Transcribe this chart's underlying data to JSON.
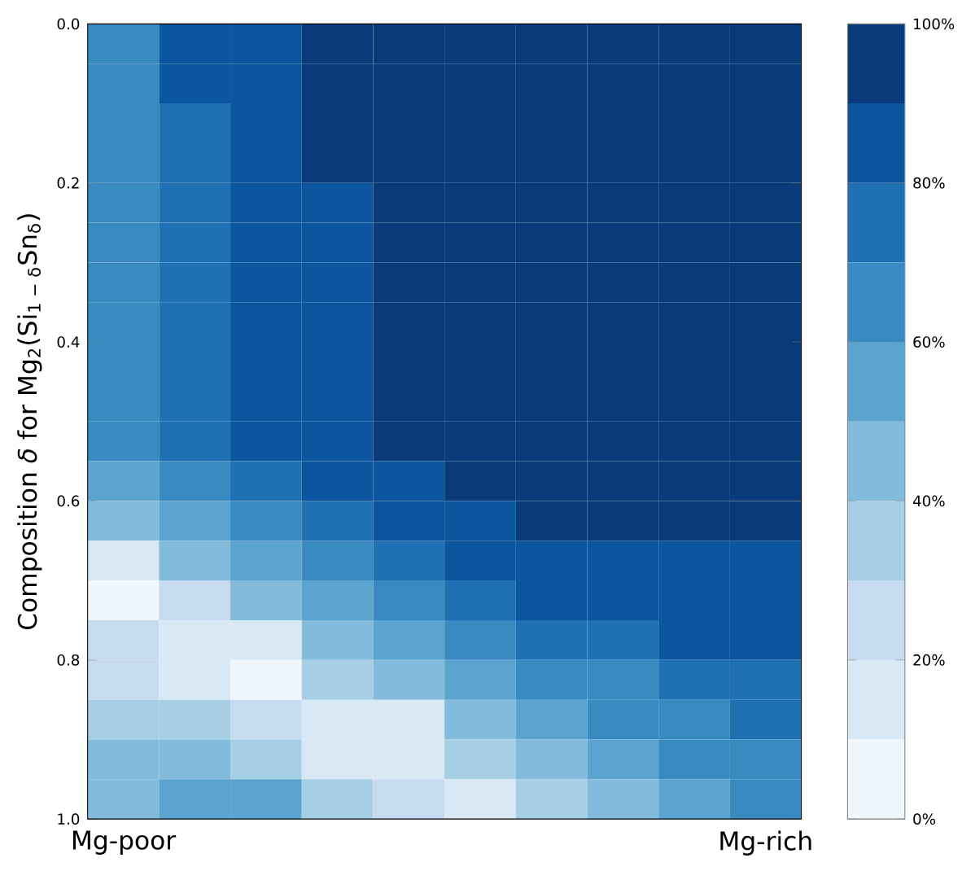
{
  "chart_data": {
    "type": "heatmap",
    "ylabel": "Composition *δ* for Mg$_{2}$(Si$_{1 − δ}$Sn$_{δ}$)",
    "categories": [
      "Mg-poor",
      null,
      null,
      null,
      null,
      null,
      null,
      null,
      null,
      "Mg-rich"
    ],
    "cells": [
      [
        65,
        85,
        85,
        95,
        95,
        95,
        95,
        95,
        95,
        95
      ],
      [
        65,
        85,
        85,
        95,
        95,
        95,
        95,
        95,
        95,
        95
      ],
      [
        65,
        75,
        85,
        95,
        95,
        95,
        95,
        95,
        95,
        95
      ],
      [
        65,
        75,
        85,
        95,
        95,
        95,
        95,
        95,
        95,
        95
      ],
      [
        65,
        75,
        85,
        85,
        95,
        95,
        95,
        95,
        95,
        95
      ],
      [
        65,
        75,
        85,
        85,
        95,
        95,
        95,
        95,
        95,
        95
      ],
      [
        65,
        75,
        85,
        85,
        95,
        95,
        95,
        95,
        95,
        95
      ],
      [
        65,
        75,
        85,
        85,
        95,
        95,
        95,
        95,
        95,
        95
      ],
      [
        65,
        75,
        85,
        85,
        95,
        95,
        95,
        95,
        95,
        95
      ],
      [
        65,
        75,
        85,
        85,
        95,
        95,
        95,
        95,
        95,
        95
      ],
      [
        65,
        75,
        85,
        85,
        95,
        95,
        95,
        95,
        95,
        95
      ],
      [
        55,
        65,
        75,
        85,
        85,
        95,
        95,
        95,
        95,
        95
      ],
      [
        45,
        55,
        65,
        75,
        85,
        85,
        95,
        95,
        95,
        95
      ],
      [
        15,
        45,
        55,
        65,
        75,
        85,
        85,
        85,
        85,
        85
      ],
      [
        5,
        25,
        45,
        55,
        65,
        75,
        85,
        85,
        85,
        85
      ],
      [
        25,
        15,
        15,
        45,
        55,
        65,
        75,
        75,
        85,
        85
      ],
      [
        25,
        15,
        5,
        35,
        45,
        55,
        65,
        65,
        75,
        75
      ],
      [
        35,
        35,
        25,
        15,
        15,
        45,
        55,
        65,
        65,
        75
      ],
      [
        45,
        45,
        35,
        15,
        15,
        35,
        45,
        55,
        65,
        65
      ],
      [
        45,
        55,
        55,
        35,
        25,
        15,
        35,
        45,
        55,
        65
      ]
    ],
    "ylim": [
      1.0,
      0.0
    ],
    "yticks": [
      {
        "value": 0.0,
        "label": "0.0"
      },
      {
        "value": 0.2,
        "label": "0.2"
      },
      {
        "value": 0.4,
        "label": "0.4"
      },
      {
        "value": 0.6,
        "label": "0.6"
      },
      {
        "value": 0.8,
        "label": "0.8"
      },
      {
        "value": 1.0,
        "label": "1.0"
      }
    ],
    "clim": [
      0,
      100
    ],
    "cticks": [
      {
        "value": 0,
        "label": "0%"
      },
      {
        "value": 20,
        "label": "20%"
      },
      {
        "value": 40,
        "label": "40%"
      },
      {
        "value": 60,
        "label": "60%"
      },
      {
        "value": 80,
        "label": "80%"
      },
      {
        "value": 100,
        "label": "100%"
      }
    ]
  }
}
